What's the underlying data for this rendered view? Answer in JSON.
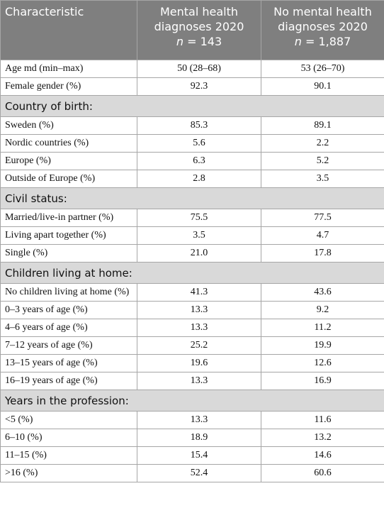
{
  "header": [
    {
      "text": "Characteristic"
    },
    {
      "text": "Mental health diagnoses 2020",
      "n_label": "n",
      "n_value": "= 143"
    },
    {
      "text": "No mental health diagnoses 2020",
      "n_label": "n",
      "n_value": "= 1,887"
    }
  ],
  "rows": [
    {
      "cells": [
        "Age md (min–max)",
        "50 (28–68)",
        "53 (26–70)"
      ]
    },
    {
      "cells": [
        "Female gender (%)",
        "92.3",
        "90.1"
      ]
    },
    {
      "section": "Country of birth:"
    },
    {
      "cells": [
        "Sweden (%)",
        "85.3",
        "89.1"
      ]
    },
    {
      "cells": [
        "Nordic countries (%)",
        "5.6",
        "2.2"
      ]
    },
    {
      "cells": [
        "Europe (%)",
        "6.3",
        "5.2"
      ]
    },
    {
      "cells": [
        "Outside of Europe (%)",
        "2.8",
        "3.5"
      ]
    },
    {
      "section": "Civil status:"
    },
    {
      "cells": [
        "Married/live-in partner (%)",
        "75.5",
        "77.5"
      ]
    },
    {
      "cells": [
        "Living apart together (%)",
        "3.5",
        "4.7"
      ]
    },
    {
      "cells": [
        "Single (%)",
        "21.0",
        "17.8"
      ]
    },
    {
      "section": "Children living at home:"
    },
    {
      "cells": [
        "No children living at home (%)",
        "41.3",
        "43.6"
      ]
    },
    {
      "cells": [
        "0–3 years of age (%)",
        "13.3",
        "9.2"
      ]
    },
    {
      "cells": [
        "4–6 years of age (%)",
        "13.3",
        "11.2"
      ]
    },
    {
      "cells": [
        "7–12 years of age (%)",
        "25.2",
        "19.9"
      ]
    },
    {
      "cells": [
        "13–15 years of age (%)",
        "19.6",
        "12.6"
      ]
    },
    {
      "cells": [
        "16–19 years of age (%)",
        "13.3",
        "16.9"
      ]
    },
    {
      "section": "Years in the profession:"
    },
    {
      "cells": [
        "<5 (%)",
        "13.3",
        "11.6"
      ]
    },
    {
      "cells": [
        "6–10 (%)",
        "18.9",
        "13.2"
      ]
    },
    {
      "cells": [
        "11–15 (%)",
        "15.4",
        "14.6"
      ]
    },
    {
      "cells": [
        ">16 (%)",
        "52.4",
        "60.6"
      ]
    }
  ]
}
